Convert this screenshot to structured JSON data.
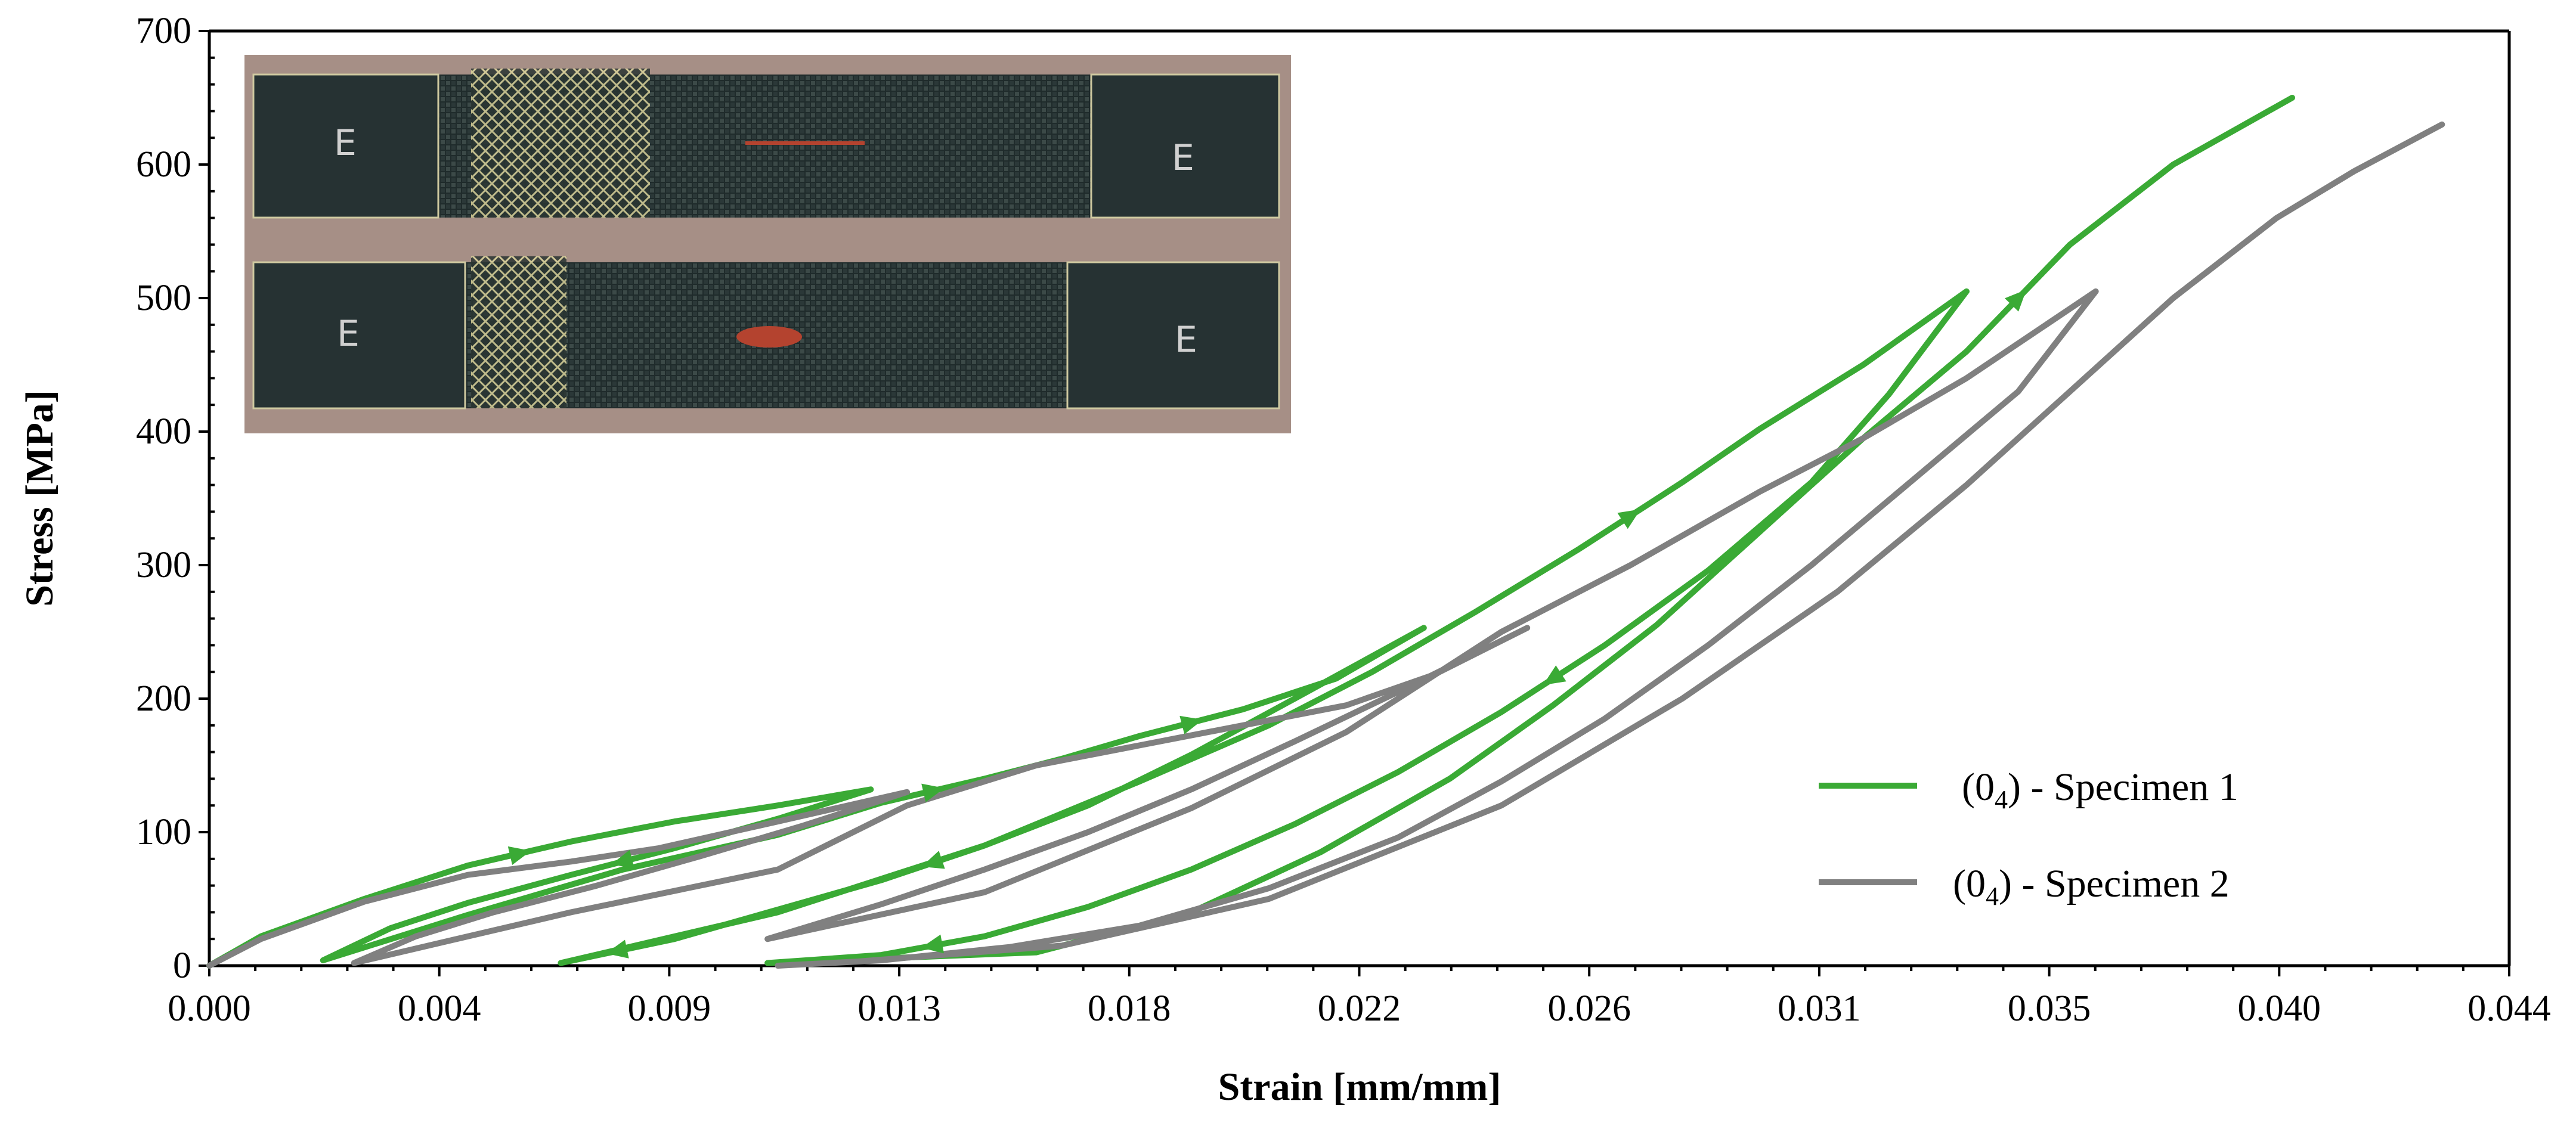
{
  "chart_data": {
    "type": "line",
    "title": "",
    "xlabel": "Strain [mm/mm]",
    "ylabel": "Stress [MPa]",
    "xlim": [
      0.0,
      0.0445
    ],
    "ylim": [
      0,
      700
    ],
    "x_tick_values": [
      0,
      0.00445,
      0.0089,
      0.01335,
      0.0178,
      0.02225,
      0.0267,
      0.03115,
      0.0356,
      0.04005,
      0.0445
    ],
    "x_tick_labels": [
      "0.000",
      "0.004",
      "0.009",
      "0.013",
      "0.018",
      "0.022",
      "0.026",
      "0.031",
      "0.035",
      "0.040",
      "0.044"
    ],
    "y_ticks": [
      0,
      100,
      200,
      300,
      400,
      500,
      600,
      700
    ],
    "grid": false,
    "legend_position": "bottom-right",
    "inset_photo": true,
    "series": [
      {
        "name": "(0",
        "name_subscript": "4",
        "name_suffix": ") - Specimen 1",
        "color": "#3aaa35",
        "x": [
          0.0,
          0.001,
          0.003,
          0.005,
          0.007,
          0.009,
          0.011,
          0.0128,
          0.011,
          0.009,
          0.007,
          0.005,
          0.0035,
          0.0022,
          0.005,
          0.008,
          0.011,
          0.013,
          0.015,
          0.0165,
          0.018,
          0.02,
          0.0218,
          0.0235,
          0.021,
          0.019,
          0.017,
          0.015,
          0.013,
          0.011,
          0.009,
          0.0068,
          0.011,
          0.015,
          0.018,
          0.0205,
          0.0225,
          0.0245,
          0.0265,
          0.0285,
          0.03,
          0.032,
          0.034,
          0.0325,
          0.031,
          0.029,
          0.027,
          0.025,
          0.023,
          0.021,
          0.019,
          0.017,
          0.015,
          0.013,
          0.0108,
          0.016,
          0.019,
          0.0215,
          0.024,
          0.026,
          0.028,
          0.03,
          0.032,
          0.034,
          0.036,
          0.038,
          0.0403
        ],
        "y": [
          0,
          22,
          50,
          75,
          93,
          108,
          120,
          132,
          110,
          88,
          68,
          47,
          28,
          4,
          38,
          72,
          98,
          122,
          140,
          155,
          172,
          192,
          215,
          253,
          200,
          158,
          120,
          90,
          64,
          42,
          20,
          2,
          40,
          90,
          138,
          180,
          220,
          265,
          312,
          362,
          402,
          450,
          505,
          428,
          362,
          296,
          240,
          190,
          145,
          106,
          72,
          44,
          22,
          8,
          2,
          10,
          40,
          85,
          140,
          195,
          255,
          325,
          395,
          460,
          540,
          600,
          650
        ]
      },
      {
        "name": "(0",
        "name_subscript": "4",
        "name_suffix": ") - Specimen 2",
        "color": "#808080",
        "x": [
          0.0,
          0.001,
          0.003,
          0.005,
          0.007,
          0.0087,
          0.011,
          0.0135,
          0.0115,
          0.0095,
          0.0075,
          0.0055,
          0.004,
          0.0028,
          0.007,
          0.011,
          0.0135,
          0.016,
          0.018,
          0.02,
          0.022,
          0.0237,
          0.0255,
          0.023,
          0.021,
          0.019,
          0.017,
          0.015,
          0.013,
          0.0108,
          0.015,
          0.019,
          0.022,
          0.025,
          0.0275,
          0.03,
          0.032,
          0.034,
          0.0365,
          0.035,
          0.033,
          0.031,
          0.029,
          0.027,
          0.025,
          0.023,
          0.0205,
          0.018,
          0.0155,
          0.013,
          0.011,
          0.0125,
          0.0165,
          0.0205,
          0.025,
          0.0285,
          0.0315,
          0.034,
          0.036,
          0.038,
          0.04,
          0.0415,
          0.0432
        ],
        "y": [
          0,
          20,
          48,
          68,
          78,
          88,
          108,
          130,
          105,
          82,
          60,
          40,
          22,
          2,
          40,
          72,
          120,
          150,
          165,
          180,
          195,
          218,
          253,
          205,
          168,
          132,
          100,
          72,
          46,
          20,
          55,
          118,
          175,
          250,
          300,
          355,
          395,
          440,
          505,
          430,
          365,
          300,
          240,
          185,
          138,
          96,
          58,
          30,
          14,
          4,
          0,
          3,
          15,
          50,
          120,
          200,
          280,
          360,
          430,
          500,
          560,
          595,
          630
        ]
      }
    ]
  },
  "legend": {
    "items": [
      {
        "prefix": "(0",
        "subscript": "4",
        "suffix": ") - Specimen 1",
        "color": "#3aaa35"
      },
      {
        "prefix": "(0",
        "subscript": "4",
        "suffix": ") - Specimen 2",
        "color": "#808080"
      }
    ]
  }
}
